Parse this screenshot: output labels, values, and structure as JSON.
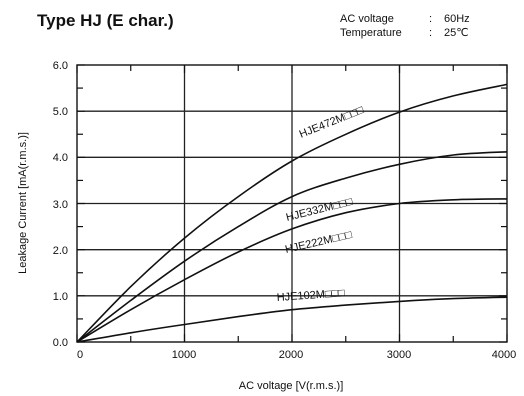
{
  "chart_data": {
    "type": "line",
    "title": "Type HJ (E  char.)",
    "conditions": [
      {
        "label": "AC voltage",
        "sep": ":",
        "value": "60Hz"
      },
      {
        "label": "Temperature",
        "sep": ":",
        "value": "25℃"
      }
    ],
    "xlabel": "AC voltage [V(r.m.s.)]",
    "ylabel": "Leakage Current  [mA(r.m.s.)]",
    "xlim": [
      0,
      4000
    ],
    "ylim": [
      0,
      6.0
    ],
    "x_ticks": [
      0,
      1000,
      2000,
      3000,
      4000
    ],
    "x_tick_labels": [
      "0",
      "1000",
      "2000",
      "3000",
      "4000"
    ],
    "y_ticks": [
      0,
      1,
      2,
      3,
      4,
      5,
      6
    ],
    "y_tick_labels": [
      "0.0",
      "1.0",
      "2.0",
      "3.0",
      "4.0",
      "5.0",
      "6.0"
    ],
    "grid": true,
    "series": [
      {
        "name": "HJE472M□□□",
        "x": [
          0,
          500,
          1000,
          1500,
          2000,
          2500,
          3000,
          3500,
          4000
        ],
        "y": [
          0,
          1.2,
          2.25,
          3.15,
          3.92,
          4.5,
          4.98,
          5.33,
          5.58
        ]
      },
      {
        "name": "HJE332M□□□",
        "x": [
          0,
          500,
          1000,
          1500,
          2000,
          2500,
          3000,
          3500,
          4000
        ],
        "y": [
          0,
          0.9,
          1.75,
          2.5,
          3.15,
          3.55,
          3.85,
          4.05,
          4.12
        ]
      },
      {
        "name": "HJE222M□□□",
        "x": [
          0,
          500,
          1000,
          1500,
          2000,
          2500,
          3000,
          3500,
          4000
        ],
        "y": [
          0,
          0.7,
          1.35,
          1.95,
          2.45,
          2.8,
          3.0,
          3.08,
          3.1
        ]
      },
      {
        "name": "HJE102M□□□",
        "x": [
          0,
          500,
          1000,
          1500,
          2000,
          2500,
          3000,
          3500,
          4000
        ],
        "y": [
          0,
          0.2,
          0.38,
          0.55,
          0.7,
          0.8,
          0.88,
          0.94,
          0.97
        ]
      }
    ]
  }
}
